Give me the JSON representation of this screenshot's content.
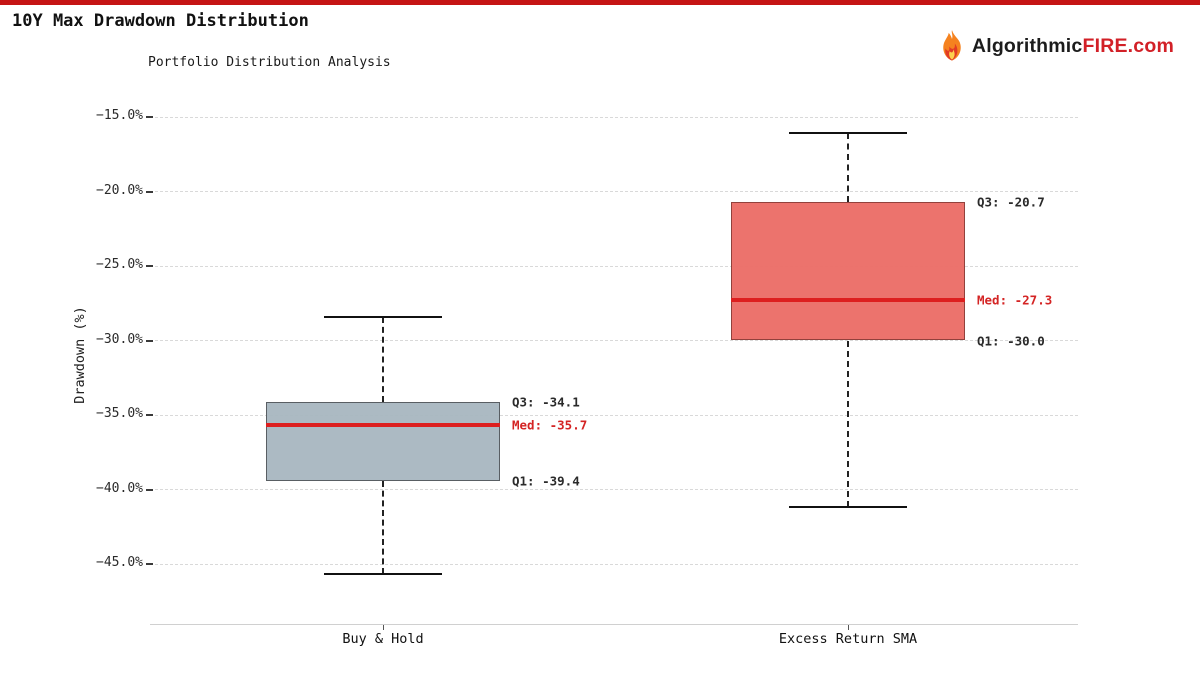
{
  "header": {
    "title": "10Y Max Drawdown Distribution",
    "accent_color": "#c51414",
    "brand": {
      "black_part": "Algorithmic",
      "red_part": "FIRE.com"
    }
  },
  "chart_data": {
    "type": "boxplot",
    "title": "Portfolio Distribution Analysis",
    "ylabel": "Drawdown (%)",
    "ylim": [
      -49.0,
      -13.9
    ],
    "yticks": [
      -15,
      -20,
      -25,
      -30,
      -35,
      -40,
      -45
    ],
    "ytick_labels": [
      "−15.0%",
      "−20.0%",
      "−25.0%",
      "−30.0%",
      "−35.0%",
      "−40.0%",
      "−45.0%"
    ],
    "grid": "horizontal-dashed",
    "legend": "none",
    "categories": [
      "Buy & Hold",
      "Excess Return SMA"
    ],
    "series": [
      {
        "name": "Buy & Hold",
        "whisker_high": -28.4,
        "q3": -34.1,
        "median": -35.7,
        "q1": -39.4,
        "whisker_low": -45.7,
        "fill_color": "#a9b8c1",
        "edge_color": "#53585d",
        "labels": {
          "q3": "Q3: -34.1",
          "med": "Med: -35.7",
          "q1": "Q1: -39.4"
        }
      },
      {
        "name": "Excess Return SMA",
        "whisker_high": -16.1,
        "q3": -20.7,
        "median": -27.3,
        "q1": -30.0,
        "whisker_low": -41.2,
        "fill_color": "#ec6e68",
        "edge_color": "#8e3a35",
        "labels": {
          "q3": "Q3: -20.7",
          "med": "Med: -27.3",
          "q1": "Q1: -30.0"
        }
      }
    ],
    "median_color": "#dd1f1f",
    "median_label_color": "#d42424",
    "annotation_color": "#2a2a2a"
  }
}
